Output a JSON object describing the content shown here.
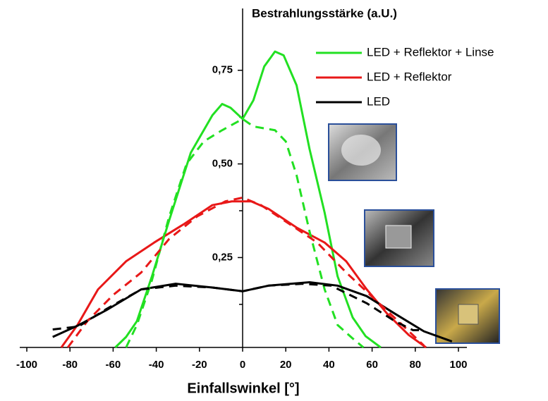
{
  "chart_data": {
    "type": "line",
    "title": "Bestrahlungsstärke (a.U.)",
    "x_label": "Einfallswinkel [°]",
    "xlim": [
      -100,
      100
    ],
    "xticks": [
      -100,
      -80,
      -60,
      -40,
      -20,
      0,
      20,
      40,
      60,
      80,
      100
    ],
    "ylim": [
      0.01,
      0.9
    ],
    "yticks": [
      {
        "value": 0.25,
        "label": "0,25"
      },
      {
        "value": 0.5,
        "label": "0,50"
      },
      {
        "value": 0.75,
        "label": "0,75"
      }
    ],
    "yminorticks": [
      0.125,
      0.375,
      0.625
    ],
    "series": [
      {
        "name": "LED + Reflektor + Linse",
        "color": "#22e022",
        "style": "solid",
        "x": [
          -59,
          -54,
          -49,
          -42,
          -34,
          -24,
          -14,
          -9.5,
          -5.6,
          0,
          5,
          10,
          15,
          19,
          25,
          31,
          38,
          44,
          51,
          57,
          64
        ],
        "values": [
          0.01,
          0.038,
          0.08,
          0.2,
          0.35,
          0.53,
          0.63,
          0.66,
          0.65,
          0.62,
          0.67,
          0.76,
          0.8,
          0.79,
          0.71,
          0.54,
          0.37,
          0.2,
          0.09,
          0.04,
          0.01
        ]
      },
      {
        "name": "LED + Reflektor",
        "color": "#e81818",
        "style": "solid",
        "x": [
          -84,
          -76.5,
          -67,
          -54,
          -41,
          -27,
          -14,
          -5,
          4,
          12,
          25,
          38,
          48,
          57.5,
          67,
          77,
          85
        ],
        "values": [
          0.01,
          0.07,
          0.165,
          0.24,
          0.29,
          0.34,
          0.39,
          0.4,
          0.4,
          0.38,
          0.33,
          0.29,
          0.24,
          0.165,
          0.1,
          0.043,
          0.01
        ]
      },
      {
        "name": "LED",
        "color": "#000000",
        "style": "solid",
        "x": [
          -88,
          -76.5,
          -63,
          -47,
          -31,
          -14,
          0,
          12,
          31,
          44,
          57.5,
          70.6,
          84,
          97
        ],
        "values": [
          0.038,
          0.068,
          0.11,
          0.165,
          0.18,
          0.17,
          0.16,
          0.175,
          0.184,
          0.175,
          0.147,
          0.1,
          0.053,
          0.026
        ]
      },
      {
        "color": "#22e022",
        "style": "dashed",
        "x": [
          -54,
          -49,
          -42,
          -34,
          -26,
          -18,
          -9.5,
          0,
          5,
          15,
          20,
          25,
          31,
          38,
          44,
          51,
          56
        ],
        "values": [
          0.01,
          0.07,
          0.19,
          0.36,
          0.5,
          0.56,
          0.59,
          0.62,
          0.6,
          0.59,
          0.56,
          0.47,
          0.32,
          0.165,
          0.07,
          0.034,
          0.01
        ]
      },
      {
        "color": "#e81818",
        "style": "dashed",
        "x": [
          -81,
          -72,
          -60,
          -47,
          -34,
          -21,
          -8,
          0,
          8.5,
          21.6,
          34.6,
          48,
          61,
          74,
          84
        ],
        "values": [
          0.01,
          0.08,
          0.15,
          0.21,
          0.3,
          0.36,
          0.4,
          0.41,
          0.39,
          0.34,
          0.29,
          0.21,
          0.14,
          0.07,
          0.015
        ]
      },
      {
        "color": "#000000",
        "style": "dashed",
        "x": [
          -88,
          -76,
          -63,
          -47,
          -31,
          -14,
          0,
          12,
          28,
          41,
          57.5,
          70.6,
          79,
          84
        ],
        "values": [
          0.058,
          0.066,
          0.113,
          0.165,
          0.175,
          0.17,
          0.16,
          0.175,
          0.18,
          0.175,
          0.128,
          0.08,
          0.056,
          0.056
        ]
      }
    ]
  }
}
